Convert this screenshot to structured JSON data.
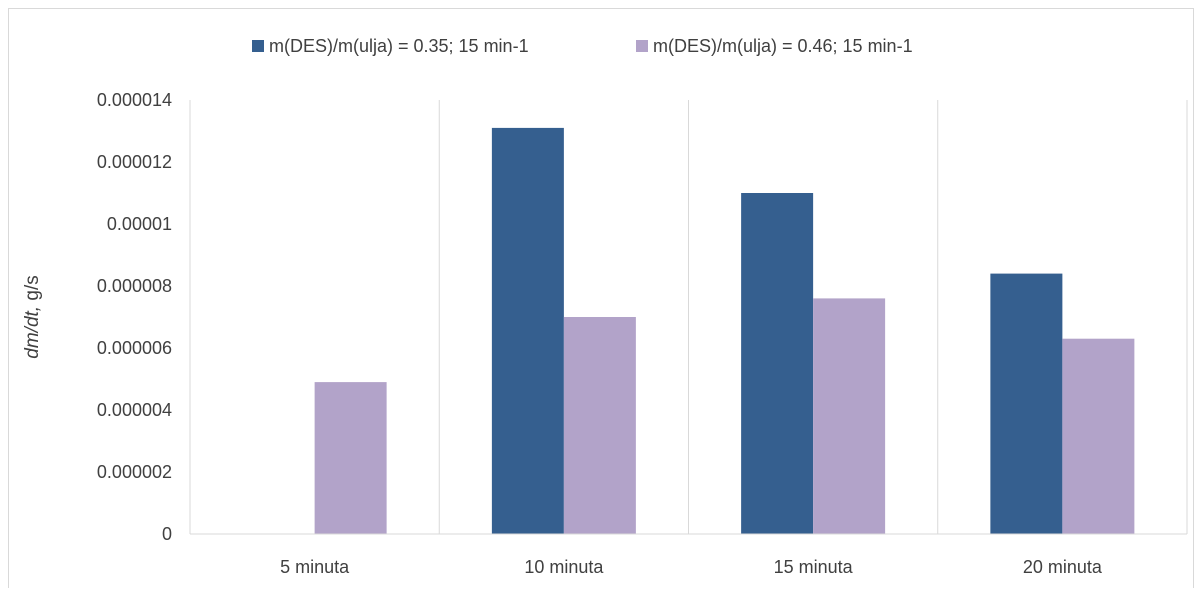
{
  "chart_data": {
    "type": "bar",
    "title": "",
    "xlabel": "",
    "ylabel": "dm/dt, g/s",
    "ylabel_parts": {
      "italic": "dm/dt,",
      "normal": " g/s"
    },
    "categories": [
      "5 minuta",
      "10 minuta",
      "15 minuta",
      "20 minuta"
    ],
    "ylim": [
      0,
      1.4e-05
    ],
    "yticks": [
      0,
      2e-06,
      4e-06,
      6e-06,
      8e-06,
      1e-05,
      1.2e-05,
      1.4e-05
    ],
    "ytick_labels": [
      "0",
      "0.000002",
      "0.000004",
      "0.000006",
      "0.000008",
      "0.00001",
      "0.000012",
      "0.000014"
    ],
    "grid": "vertical category separators",
    "legend_position": "top",
    "series": [
      {
        "name": "m(DES)/m(ulja) = 0.35; 15 min-1",
        "color": "#355f8f",
        "values": [
          null,
          1.31e-05,
          1.1e-05,
          8.4e-06
        ]
      },
      {
        "name": "m(DES)/m(ulja) = 0.46; 15 min-1",
        "color": "#b2a3c9",
        "values": [
          4.9e-06,
          7e-06,
          7.6e-06,
          6.3e-06
        ]
      }
    ]
  }
}
